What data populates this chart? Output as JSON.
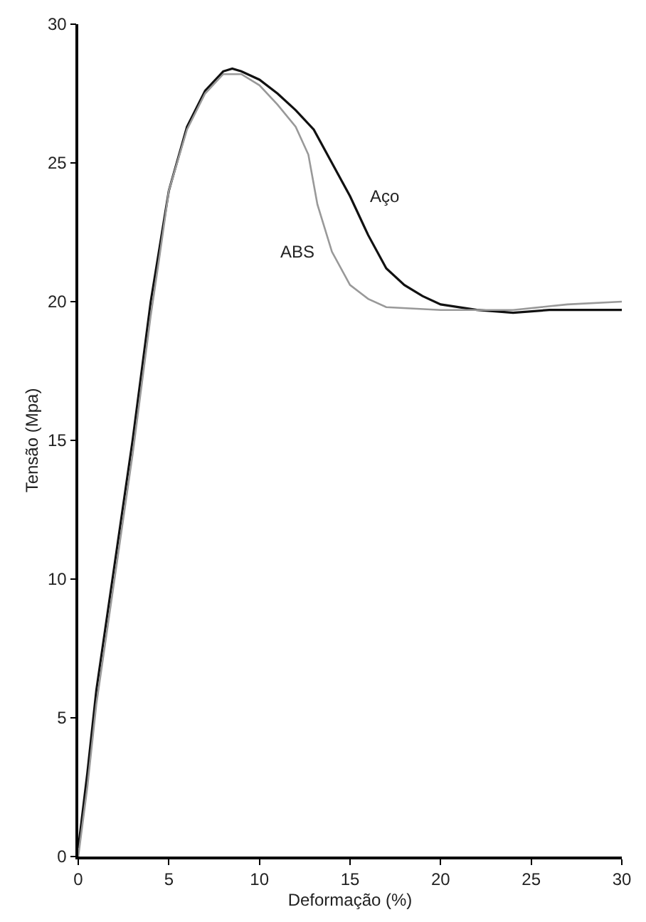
{
  "chart_data": {
    "type": "line",
    "xlabel": "Deformação (%)",
    "ylabel": "Tensão (Mpa)",
    "xlim": [
      0,
      30
    ],
    "xticks": [
      0,
      5,
      10,
      15,
      20,
      25,
      30
    ],
    "ylim": [
      0,
      30
    ],
    "yticks": [
      0,
      5,
      10,
      15,
      20,
      25,
      30
    ],
    "legend": false,
    "marker": "none",
    "line_style": "solid",
    "series": [
      {
        "name": "Aço",
        "color": "#111111",
        "x": [
          0,
          0.5,
          1,
          2,
          3,
          4,
          4.5,
          5,
          6,
          7,
          8,
          8.5,
          9,
          10,
          11,
          12,
          13,
          14,
          15,
          16,
          17,
          18,
          19,
          20,
          22,
          24,
          26,
          28,
          30
        ],
        "values": [
          0.3,
          3,
          6,
          10.5,
          15,
          20,
          22,
          24,
          26.3,
          27.6,
          28.3,
          28.4,
          28.3,
          28,
          27.5,
          26.9,
          26.2,
          25,
          23.8,
          22.4,
          21.2,
          20.6,
          20.2,
          19.9,
          19.7,
          19.6,
          19.7,
          19.7,
          19.7
        ]
      },
      {
        "name": "ABS",
        "color": "#999999",
        "x": [
          0,
          0.5,
          1,
          2,
          3,
          4,
          4.5,
          5,
          6,
          7,
          8,
          9,
          10,
          11,
          12,
          12.7,
          13.2,
          14,
          15,
          16,
          17,
          20,
          24,
          27,
          30
        ],
        "values": [
          0,
          2.5,
          5.5,
          10,
          14.5,
          19.5,
          21.7,
          24,
          26.2,
          27.5,
          28.2,
          28.2,
          27.8,
          27.1,
          26.3,
          25.3,
          23.5,
          21.8,
          20.6,
          20.1,
          19.8,
          19.7,
          19.7,
          19.9,
          20
        ]
      }
    ]
  }
}
